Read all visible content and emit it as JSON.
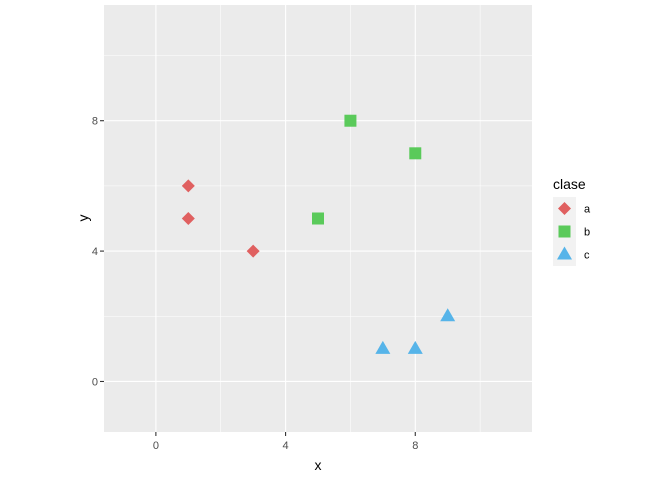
{
  "chart_data": {
    "type": "scatter",
    "xlabel": "x",
    "ylabel": "y",
    "xlim": [
      -1.6,
      11.6
    ],
    "ylim": [
      -1.55,
      11.55
    ],
    "xticks": [
      0,
      4,
      8
    ],
    "yticks": [
      0,
      4,
      8
    ],
    "xtick_labels": [
      "0",
      "4",
      "8"
    ],
    "ytick_labels": [
      "0",
      "4",
      "8"
    ],
    "grid": true,
    "legend_position": "right",
    "legend_title": "clase",
    "series": [
      {
        "name": "a",
        "shape": "diamond",
        "color": "#E06060",
        "points": [
          {
            "x": 1,
            "y": 6
          },
          {
            "x": 1,
            "y": 5
          },
          {
            "x": 3,
            "y": 4
          }
        ]
      },
      {
        "name": "b",
        "shape": "square",
        "color": "#5ACA5A",
        "points": [
          {
            "x": 6,
            "y": 8
          },
          {
            "x": 8,
            "y": 7
          },
          {
            "x": 5,
            "y": 5
          }
        ]
      },
      {
        "name": "c",
        "shape": "triangle",
        "color": "#56B4E9",
        "points": [
          {
            "x": 7,
            "y": 1
          },
          {
            "x": 8,
            "y": 1
          },
          {
            "x": 9,
            "y": 2
          }
        ]
      }
    ],
    "panel_background": "#EBEBEB",
    "gridline_color": "#FFFFFF"
  }
}
